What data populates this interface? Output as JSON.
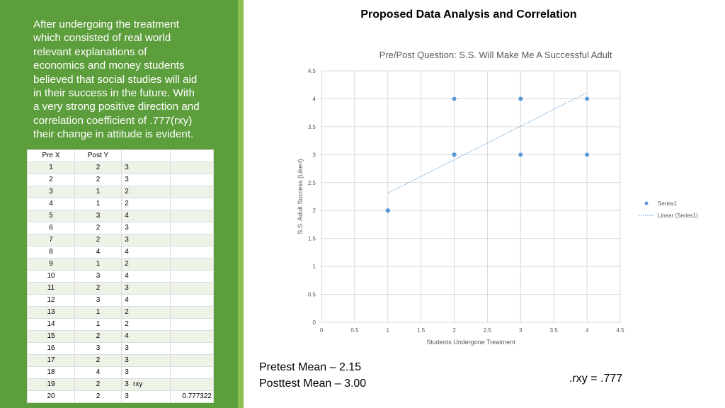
{
  "intro_lines": [
    "After undergoing the treatment",
    "which consisted of real world",
    "relevant explanations of",
    "economics and money students",
    "believed that social studies will aid",
    "in their success in the future. With",
    "a very strong positive direction and",
    "correlation coefficient of .777(rxy)",
    "their change in attitude is evident."
  ],
  "table": {
    "header": [
      "Pre X",
      "Post Y"
    ],
    "rows": [
      {
        "n": "1",
        "x": "2",
        "y": "3",
        "label": "",
        "extra": ""
      },
      {
        "n": "2",
        "x": "2",
        "y": "3",
        "label": "",
        "extra": ""
      },
      {
        "n": "3",
        "x": "1",
        "y": "2",
        "label": "",
        "extra": ""
      },
      {
        "n": "4",
        "x": "1",
        "y": "2",
        "label": "",
        "extra": ""
      },
      {
        "n": "5",
        "x": "3",
        "y": "4",
        "label": "",
        "extra": ""
      },
      {
        "n": "6",
        "x": "2",
        "y": "3",
        "label": "",
        "extra": ""
      },
      {
        "n": "7",
        "x": "2",
        "y": "3",
        "label": "",
        "extra": ""
      },
      {
        "n": "8",
        "x": "4",
        "y": "4",
        "label": "",
        "extra": ""
      },
      {
        "n": "9",
        "x": "1",
        "y": "2",
        "label": "",
        "extra": ""
      },
      {
        "n": "10",
        "x": "3",
        "y": "4",
        "label": "",
        "extra": ""
      },
      {
        "n": "11",
        "x": "2",
        "y": "3",
        "label": "",
        "extra": ""
      },
      {
        "n": "12",
        "x": "3",
        "y": "4",
        "label": "",
        "extra": ""
      },
      {
        "n": "13",
        "x": "1",
        "y": "2",
        "label": "",
        "extra": ""
      },
      {
        "n": "14",
        "x": "1",
        "y": "2",
        "label": "",
        "extra": ""
      },
      {
        "n": "15",
        "x": "2",
        "y": "4",
        "label": "",
        "extra": ""
      },
      {
        "n": "16",
        "x": "3",
        "y": "3",
        "label": "",
        "extra": ""
      },
      {
        "n": "17",
        "x": "2",
        "y": "3",
        "label": "",
        "extra": ""
      },
      {
        "n": "18",
        "x": "4",
        "y": "3",
        "label": "",
        "extra": ""
      },
      {
        "n": "19",
        "x": "2",
        "y": "3",
        "label": "rxy",
        "extra": ""
      },
      {
        "n": "20",
        "x": "2",
        "y": "3",
        "label": "",
        "extra": "0.777322"
      }
    ]
  },
  "page_title": "Proposed Data Analysis and Correlation",
  "chart_data": {
    "type": "scatter",
    "title": "Pre/Post Question: S.S. Will Make Me A Successful Adult",
    "xlabel": "Students Undergone Treatment",
    "ylabel": "S.S. Adult Success (Likert)",
    "xlim": [
      0,
      4.5
    ],
    "ylim": [
      0,
      4.5
    ],
    "xticks": [
      "0",
      "0.5",
      "1",
      "1.5",
      "2",
      "2.5",
      "3",
      "3.5",
      "4",
      "4.5"
    ],
    "yticks": [
      "0",
      "0.5",
      "1",
      "1.5",
      "2",
      "2.5",
      "3",
      "3.5",
      "4",
      "4.5"
    ],
    "grid": true,
    "legend_position": "right",
    "series": [
      {
        "name": "Series1",
        "x": [
          2,
          2,
          1,
          1,
          3,
          2,
          2,
          4,
          1,
          3,
          2,
          3,
          1,
          1,
          2,
          3,
          2,
          4,
          2,
          2
        ],
        "y": [
          3,
          3,
          2,
          2,
          4,
          3,
          3,
          4,
          2,
          4,
          3,
          4,
          2,
          2,
          4,
          3,
          3,
          3,
          3,
          3
        ]
      }
    ],
    "trendline": {
      "name": "Linear (Series1)",
      "x": [
        1,
        4
      ],
      "y": [
        2.31,
        4.11
      ]
    },
    "colors": {
      "points": "#5b9bd5",
      "grid": "#d9d9d9",
      "axis_text": "#595959"
    }
  },
  "stats": {
    "pretest": "Pretest Mean – 2.15",
    "posttest": "Posttest Mean – 3.00"
  },
  "rxy_text": ".rxy = .777"
}
